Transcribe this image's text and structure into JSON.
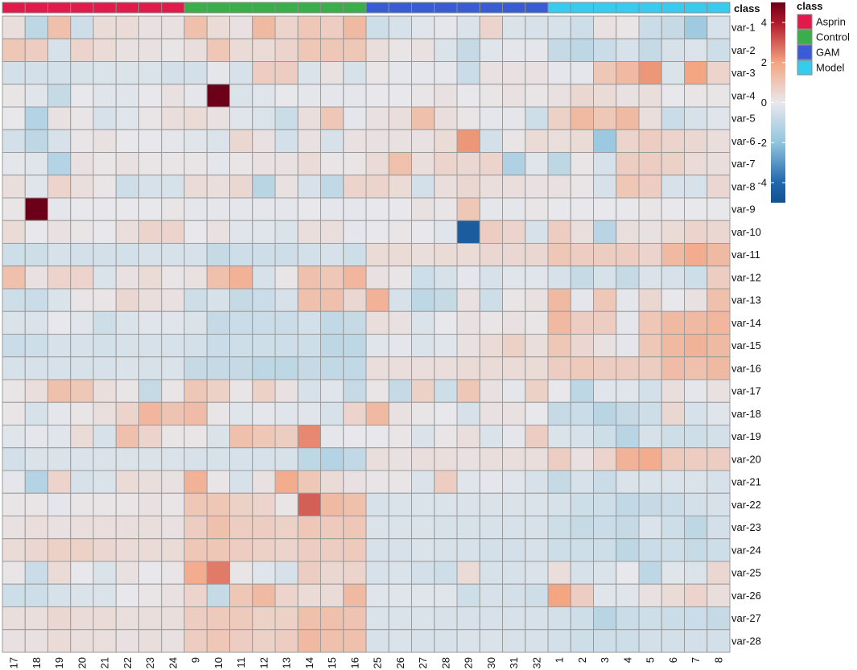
{
  "chart_data": {
    "type": "heatmap",
    "annotation_title": "class",
    "color_scale_ticks": [
      "4",
      "2",
      "0",
      "-2",
      "-4"
    ],
    "color_scale_values": [
      4,
      2,
      0,
      -2,
      -4
    ],
    "scale_range": [
      -5,
      5
    ],
    "scale_colors": {
      "low": "#14518f",
      "mid": "#e8e8ec",
      "high": "#6b0018"
    },
    "class_legend": [
      {
        "label": "Asprin",
        "color": "#e2194b"
      },
      {
        "label": "Control",
        "color": "#3bad4a"
      },
      {
        "label": "GAM",
        "color": "#3b5bd6"
      },
      {
        "label": "Model",
        "color": "#35cdeb"
      }
    ],
    "columns": [
      "17",
      "18",
      "19",
      "20",
      "21",
      "22",
      "23",
      "24",
      "9",
      "10",
      "11",
      "12",
      "13",
      "14",
      "15",
      "16",
      "25",
      "26",
      "27",
      "28",
      "29",
      "30",
      "31",
      "32",
      "1",
      "2",
      "3",
      "4",
      "5",
      "6",
      "7",
      "8"
    ],
    "column_classes": [
      "Asprin",
      "Asprin",
      "Asprin",
      "Asprin",
      "Asprin",
      "Asprin",
      "Asprin",
      "Asprin",
      "Control",
      "Control",
      "Control",
      "Control",
      "Control",
      "Control",
      "Control",
      "Control",
      "GAM",
      "GAM",
      "GAM",
      "GAM",
      "GAM",
      "GAM",
      "GAM",
      "GAM",
      "Model",
      "Model",
      "Model",
      "Model",
      "Model",
      "Model",
      "Model",
      "Model"
    ],
    "rows": [
      "var-1",
      "var-2",
      "var-3",
      "var-4",
      "var-5",
      "var-6",
      "var-7",
      "var-8",
      "var-9",
      "var-10",
      "var-11",
      "var-12",
      "var-13",
      "var-14",
      "var-15",
      "var-16",
      "var-17",
      "var-18",
      "var-19",
      "var-20",
      "var-21",
      "var-22",
      "var-23",
      "var-24",
      "var-25",
      "var-26",
      "var-27",
      "var-28"
    ],
    "values": [
      [
        0.3,
        -1,
        1.2,
        -0.6,
        0.4,
        0.4,
        0.2,
        0.2,
        1.2,
        0.4,
        0.2,
        1.4,
        0.6,
        1,
        0.8,
        1.4,
        -0.6,
        -0.4,
        -0.2,
        -0.1,
        -0.3,
        0.6,
        -0.3,
        -0.4,
        -0.4,
        -0.6,
        0.2,
        0.1,
        -0.7,
        -0.8,
        -1.7,
        -0.4
      ],
      [
        1,
        0.8,
        -0.4,
        0.6,
        0.4,
        0.2,
        0.2,
        0.1,
        0.3,
        1,
        0.4,
        0.4,
        0.6,
        1,
        1,
        1,
        0.3,
        0.1,
        0.2,
        -0.3,
        -0.8,
        -0.2,
        -0.1,
        -0.1,
        -0.8,
        -1,
        -0.7,
        -0.4,
        -0.8,
        -0.4,
        -0.3,
        -0.6
      ],
      [
        -0.5,
        -0.5,
        -0.5,
        -0.4,
        -0.3,
        -0.3,
        -0.3,
        -0.5,
        -0.5,
        -0.1,
        -0.4,
        0.8,
        0.8,
        -0.3,
        0.2,
        -0.4,
        0.1,
        -0.1,
        -0.1,
        -0.1,
        -0.7,
        0.2,
        0.2,
        0.2,
        -0.1,
        -0.1,
        1,
        1.4,
        2.2,
        -0.3,
        2,
        0.6
      ],
      [
        0.1,
        -0.2,
        -0.8,
        0,
        -0.2,
        -0.2,
        0,
        0.2,
        -0.1,
        5,
        -0.3,
        -0.2,
        0,
        -0.1,
        -0.1,
        -0.1,
        0,
        0,
        0.1,
        0.2,
        0,
        0.1,
        0.2,
        0.1,
        0.2,
        0.5,
        0.4,
        0.2,
        0.3,
        0,
        0.1,
        0.1
      ],
      [
        0,
        -1.2,
        0.2,
        0.1,
        -0.4,
        -0.2,
        0.1,
        0.3,
        0.4,
        0.2,
        -0.2,
        -0.3,
        -0.7,
        0.3,
        1,
        -0.1,
        0.2,
        0.3,
        1.2,
        0.3,
        0.1,
        -0.1,
        -0.1,
        -0.6,
        0.7,
        1.4,
        1,
        1.4,
        0.3,
        -0.7,
        -0.4,
        -0.2
      ],
      [
        -0.5,
        -1,
        -0.4,
        0.1,
        0.2,
        0,
        0,
        -0.1,
        -0.2,
        -0.3,
        0.5,
        0.2,
        -0.5,
        0.2,
        -0.4,
        0.2,
        0.2,
        0.2,
        0.2,
        0.4,
        2.2,
        -0.5,
        0.1,
        0.4,
        0.3,
        0.4,
        -1.8,
        0.6,
        0.8,
        0.6,
        0.5,
        0.3
      ],
      [
        -0.1,
        -0.2,
        -1.2,
        0.2,
        0.1,
        0.2,
        0.1,
        0.1,
        0.1,
        -0.1,
        0.1,
        0.2,
        0.2,
        0.4,
        0.1,
        0.1,
        0.4,
        1.2,
        0.3,
        0.6,
        0.5,
        0.6,
        -1.3,
        -0.2,
        -1,
        0.1,
        -0.4,
        0.8,
        0.8,
        0.7,
        0.4,
        0.3
      ],
      [
        0.3,
        -0.2,
        0.6,
        0.3,
        0.1,
        -0.6,
        -0.4,
        -0.4,
        0.4,
        0.3,
        0.5,
        -1.1,
        0.2,
        -0.4,
        -0.9,
        0.6,
        0.6,
        0.4,
        -0.5,
        0.3,
        0.5,
        0.3,
        0.3,
        0.2,
        0.2,
        0.1,
        -0.4,
        1,
        0.8,
        -0.4,
        -0.4,
        0.5
      ],
      [
        0.1,
        5,
        -0.1,
        0,
        0,
        0,
        0,
        0.1,
        -0.1,
        -0.1,
        -0.1,
        -0.1,
        -0.1,
        0,
        -0.1,
        -0.1,
        0,
        0,
        0.2,
        0.1,
        1,
        -0.1,
        -0.1,
        0.1,
        0,
        0,
        0,
        0,
        0.1,
        0,
        0,
        0
      ],
      [
        0.4,
        0,
        0.2,
        0.1,
        0,
        0.3,
        0.6,
        0.6,
        0,
        0.2,
        -0.2,
        -0.2,
        -0.3,
        0.3,
        0.3,
        -0.1,
        0,
        0.1,
        0,
        -0.2,
        -4.5,
        0.8,
        0.6,
        -0.4,
        0.8,
        0.3,
        -1.1,
        0.3,
        0.2,
        0.4,
        0.6,
        0.5
      ],
      [
        -0.6,
        -0.6,
        -0.4,
        -0.5,
        -0.5,
        -0.5,
        -0.4,
        -0.4,
        -0.4,
        -0.8,
        -0.6,
        -0.6,
        -0.6,
        -0.5,
        -0.4,
        -0.6,
        0.4,
        0.4,
        0.3,
        0.4,
        0.4,
        0.5,
        0.5,
        0.5,
        1,
        0.8,
        0.8,
        0.8,
        0.6,
        1.4,
        1.8,
        1.4
      ],
      [
        1.2,
        0.2,
        0.6,
        0.6,
        -0.3,
        0.2,
        0.4,
        0.1,
        0.2,
        1.2,
        1.6,
        -0.4,
        0.1,
        1.2,
        1,
        1.5,
        0.2,
        0.1,
        -0.6,
        -0.4,
        -0.1,
        -0.4,
        -0.2,
        -0.2,
        -0.4,
        -0.8,
        -0.4,
        -0.8,
        -0.3,
        -0.4,
        -0.6,
        0.8
      ],
      [
        -0.6,
        -0.7,
        -0.3,
        0.1,
        0.1,
        0.5,
        0.3,
        0.2,
        -0.6,
        -0.4,
        -0.8,
        -0.7,
        -0.4,
        1.2,
        1.2,
        0.5,
        1.6,
        -0.4,
        -1,
        -0.8,
        0.2,
        -0.6,
        0.1,
        0.2,
        1.4,
        -0.1,
        1,
        -0.1,
        0.5,
        0,
        0.2,
        1.2
      ],
      [
        -0.3,
        -0.3,
        0,
        -0.2,
        -0.6,
        -0.3,
        -0.2,
        -0.2,
        -0.3,
        -0.8,
        -0.7,
        -0.7,
        -0.7,
        -0.5,
        -0.9,
        -0.8,
        0.3,
        0.2,
        -0.3,
        0,
        0.2,
        0.1,
        0.2,
        0.1,
        1.4,
        0.8,
        0.8,
        -0.1,
        1,
        1.4,
        1.4,
        1.5
      ],
      [
        -0.7,
        -0.6,
        -0.4,
        -0.4,
        -0.5,
        -0.4,
        -0.4,
        -0.4,
        -0.5,
        -0.7,
        -0.6,
        -0.6,
        -0.6,
        -0.6,
        -1,
        -1,
        -0.2,
        -0.1,
        -0.3,
        -0.2,
        0.2,
        0.4,
        0.7,
        0.3,
        1,
        0.5,
        0.2,
        -0.1,
        1,
        1.4,
        1.6,
        1.4
      ],
      [
        -0.4,
        -0.4,
        -0.4,
        -0.4,
        -0.4,
        -0.3,
        -0.4,
        -0.3,
        -0.8,
        -0.8,
        -0.8,
        -1,
        -1,
        -0.8,
        -0.9,
        -0.9,
        0.3,
        0.3,
        0.3,
        0.3,
        0.4,
        0.4,
        0.4,
        0.4,
        0.8,
        0.9,
        0.8,
        0.8,
        0.8,
        1.3,
        1.2,
        1.4
      ],
      [
        0.1,
        0.3,
        1.2,
        1,
        0.3,
        0.1,
        -0.8,
        0.1,
        1,
        0.7,
        0.1,
        0.7,
        0.2,
        -0.4,
        -0.2,
        -0.8,
        0.1,
        -0.8,
        0.7,
        -0.6,
        1,
        0.2,
        -0.1,
        0.7,
        0,
        -1,
        -0.2,
        -0.2,
        -0.5,
        0.3,
        -0.1,
        0.2
      ],
      [
        0.1,
        -0.4,
        -0.1,
        0.1,
        0.3,
        0.6,
        1.5,
        1.1,
        1.3,
        0.1,
        -0.2,
        -0.1,
        -0.2,
        -0.2,
        -0.4,
        0.6,
        1.4,
        0.2,
        0.1,
        0,
        -0.4,
        0.2,
        0.2,
        0,
        -0.8,
        -0.7,
        -1.1,
        -0.8,
        -0.6,
        0.5,
        -0.4,
        -0.2
      ],
      [
        -0.2,
        -0.1,
        -0.2,
        0.4,
        -0.4,
        1.2,
        0.6,
        0.1,
        0.1,
        -0.3,
        1.2,
        1,
        0.8,
        2.4,
        -0.1,
        0,
        0,
        0.1,
        -0.3,
        0.1,
        0.3,
        -0.3,
        -0.1,
        0.8,
        -0.3,
        -0.4,
        -0.6,
        -1.1,
        -0.4,
        -0.6,
        -0.6,
        -0.5
      ],
      [
        -0.5,
        -0.3,
        -0.3,
        -0.3,
        -0.3,
        -0.3,
        -0.3,
        -0.3,
        -0.4,
        -0.4,
        -0.4,
        -0.4,
        -0.4,
        -1,
        -1.2,
        -0.9,
        0.3,
        0.2,
        0.3,
        0.3,
        0.2,
        0.3,
        0.3,
        0.3,
        0.8,
        0.2,
        0.6,
        1.6,
        1.8,
        0.9,
        0.8,
        0.8
      ],
      [
        -0.1,
        -1.2,
        0.6,
        -0.4,
        -0.3,
        0.4,
        0.3,
        0.2,
        1.6,
        0.1,
        -0.4,
        0.2,
        1.8,
        1,
        0.4,
        0.2,
        0.1,
        0.1,
        -0.3,
        0.8,
        -0.2,
        -0.1,
        -0.2,
        -0.4,
        -0.8,
        -0.4,
        -0.7,
        -0.3,
        -0.3,
        -0.3,
        -0.3,
        -0.4
      ],
      [
        0.1,
        0.1,
        -0.1,
        0.1,
        0.1,
        0.1,
        0.2,
        0.1,
        1,
        1,
        0.7,
        0.6,
        0.1,
        3,
        1.4,
        1.2,
        -0.4,
        -0.3,
        -0.3,
        -0.3,
        -0.3,
        -0.3,
        -0.3,
        -0.3,
        -0.4,
        -0.6,
        -0.6,
        -0.9,
        -0.8,
        -0.7,
        -0.5,
        -0.4
      ],
      [
        0.2,
        0.3,
        0.2,
        0.3,
        0.3,
        0.3,
        0.3,
        0.2,
        0.8,
        1.2,
        0.8,
        0.8,
        0.7,
        1,
        0.9,
        1,
        -0.3,
        -0.3,
        -0.3,
        -0.4,
        -0.4,
        -0.4,
        -0.4,
        -0.4,
        -0.6,
        -0.8,
        -0.7,
        -0.8,
        -0.3,
        -0.6,
        -1,
        -0.5
      ],
      [
        0.4,
        0.5,
        0.7,
        0.7,
        0.5,
        0.4,
        0.4,
        0.4,
        1,
        1,
        0.8,
        0.7,
        0.6,
        0.8,
        0.8,
        0.9,
        -0.4,
        -0.4,
        -0.3,
        -0.4,
        -0.4,
        -0.5,
        -0.5,
        -0.4,
        -0.6,
        -0.6,
        -0.6,
        -1,
        -0.7,
        -0.6,
        -0.8,
        -0.6
      ],
      [
        0.1,
        -0.7,
        0.4,
        0,
        -0.3,
        0.2,
        0,
        0.1,
        1.8,
        2.6,
        0.1,
        -0.2,
        -0.4,
        0.8,
        0.5,
        0.6,
        -0.4,
        -0.3,
        -0.5,
        -0.6,
        0.4,
        -0.4,
        -0.4,
        -0.3,
        0.3,
        -0.4,
        -0.3,
        0,
        -1,
        -0.2,
        -0.3,
        0.5
      ],
      [
        -0.6,
        -0.6,
        -0.4,
        -0.3,
        -0.3,
        0,
        0.1,
        0.2,
        0.6,
        -0.8,
        1,
        1.4,
        0.6,
        0.4,
        0.4,
        1.4,
        -0.2,
        -0.2,
        -0.2,
        -0.2,
        -0.6,
        -0.4,
        -0.5,
        -0.6,
        2,
        0.8,
        -0.2,
        -0.2,
        0.2,
        0.4,
        0.6,
        0.3
      ],
      [
        0.3,
        0.3,
        0.5,
        0.4,
        0.4,
        0.3,
        0.3,
        0.3,
        0.8,
        0.9,
        0.9,
        0.7,
        0.7,
        1.2,
        1.2,
        1.1,
        -0.3,
        -0.3,
        -0.3,
        -0.4,
        -0.4,
        -0.4,
        -0.4,
        -0.4,
        -0.5,
        -0.6,
        -1.1,
        -0.7,
        -0.6,
        -0.7,
        -0.7,
        -0.8
      ],
      [
        0.2,
        0.2,
        0.4,
        0.3,
        0.3,
        0.2,
        0.3,
        0.2,
        0.8,
        1,
        0.8,
        0.7,
        0.8,
        1.4,
        1.2,
        1.2,
        -0.4,
        -0.3,
        -0.4,
        -0.4,
        -0.3,
        -0.3,
        -0.4,
        -0.4,
        -0.5,
        -0.6,
        -0.6,
        -0.6,
        -0.5,
        -0.5,
        -0.5,
        -0.5
      ]
    ]
  }
}
